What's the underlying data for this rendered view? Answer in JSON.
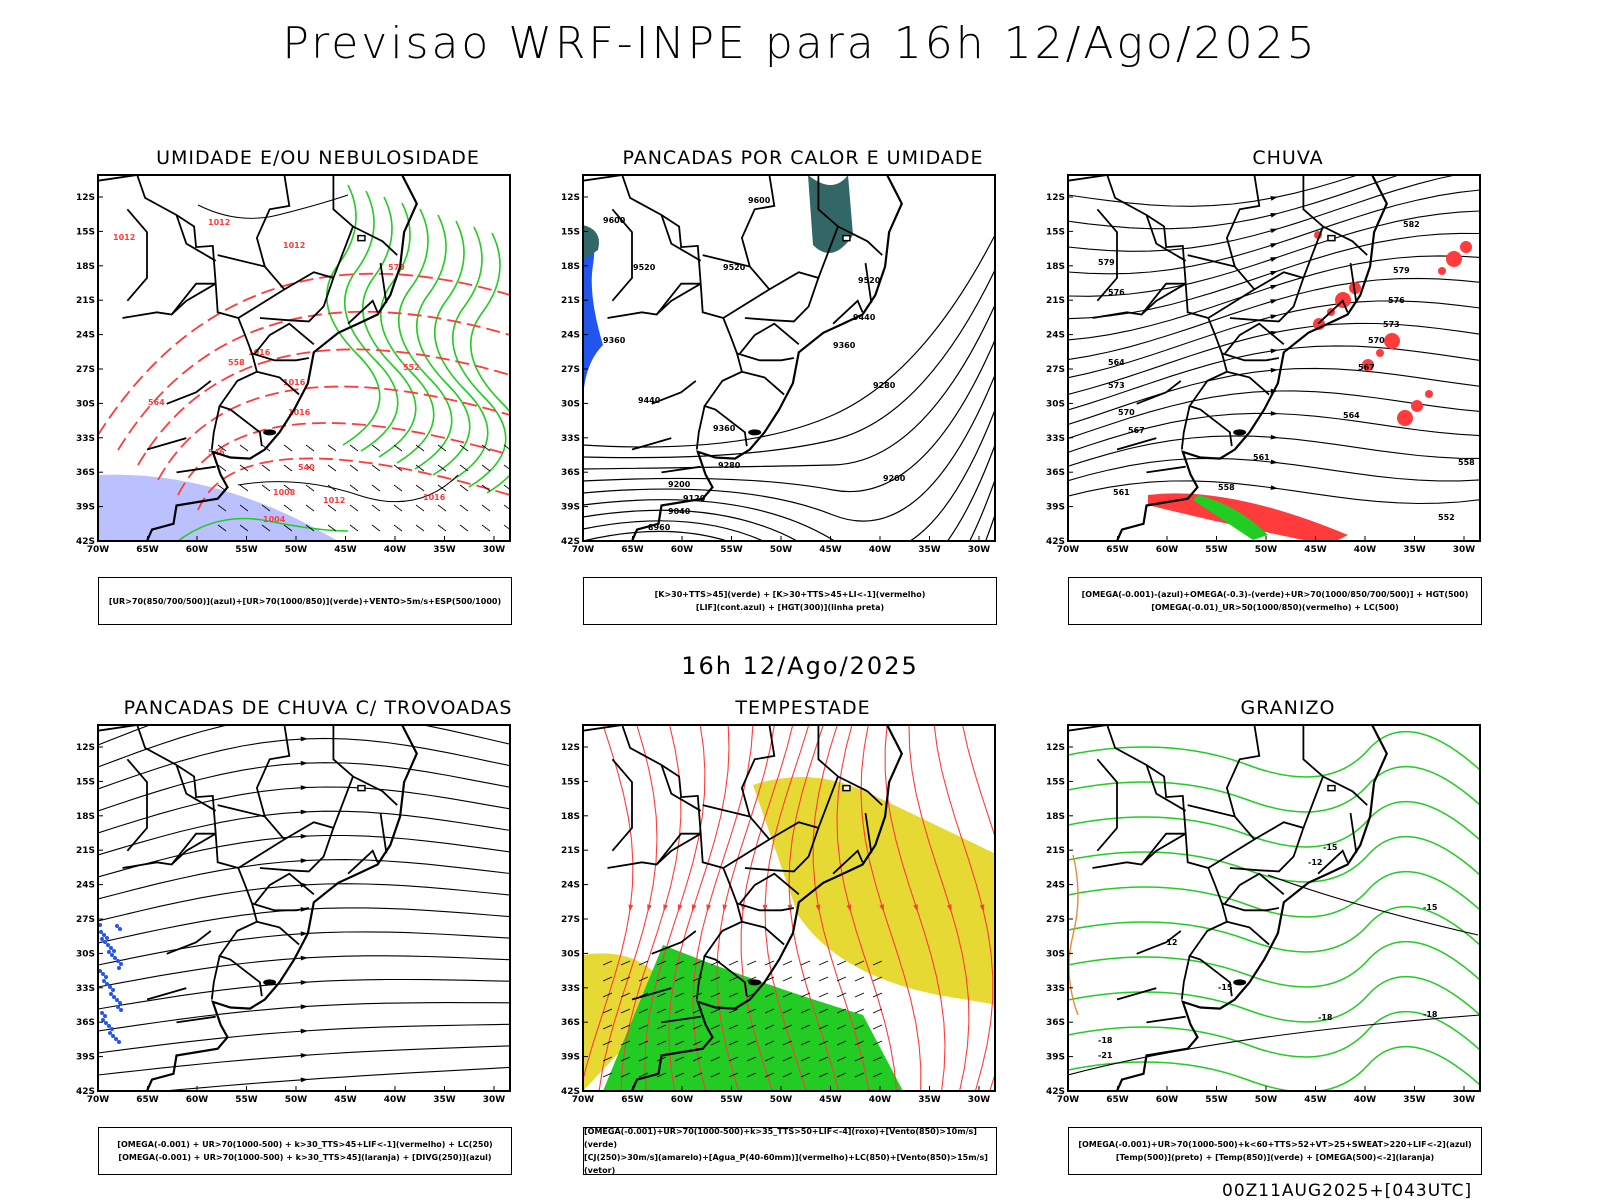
{
  "title": "Previsao WRF-INPE  para 16h 12/Ago/2025",
  "mid_date": "16h 12/Ago/2025",
  "footer_stamp": "00Z11AUG2025+[043UTC]",
  "axes": {
    "lat_labels": [
      "12S",
      "15S",
      "18S",
      "21S",
      "24S",
      "27S",
      "30S",
      "33S",
      "36S",
      "39S",
      "42S"
    ],
    "lon_labels": [
      "70W",
      "65W",
      "60W",
      "55W",
      "50W",
      "45W",
      "40W",
      "35W",
      "30W"
    ]
  },
  "colors": {
    "red": "#ff3b3b",
    "green": "#22cc22",
    "blue": "#2255ee",
    "yellow": "#e6d934",
    "lavender": "#aab0ff",
    "teal": "#336666",
    "orange": "#ee8833"
  },
  "panels": [
    {
      "id": "umidade",
      "title": "UMIDADE E/OU NEBULOSIDADE",
      "legend": [
        "[UR>70(850/700/500)](azul)+[UR>70(1000/850)](verde)+VENTO>5m/s+ESP(500/1000)"
      ],
      "contour_labels": [
        "1012",
        "1012",
        "1012",
        "1016",
        "1016",
        "1016",
        "1008",
        "1004",
        "1012",
        "1016",
        "570",
        "564",
        "558",
        "552",
        "546",
        "540"
      ]
    },
    {
      "id": "pancadas-calor",
      "title": "PANCADAS POR CALOR E UMIDADE",
      "legend": [
        "[K>30+TTS>45](verde) + [K>30+TTS>45+LI<-1](vermelho)",
        "[LIF](cont.azul) + [HGT(300)](linha preta)"
      ],
      "contour_labels": [
        "9600",
        "9600",
        "9520",
        "9520",
        "9520",
        "9440",
        "9440",
        "9360",
        "9280",
        "9360",
        "9280",
        "9200",
        "9200",
        "9120",
        "9040",
        "8960",
        "9360"
      ]
    },
    {
      "id": "chuva",
      "title": "CHUVA",
      "legend": [
        "[OMEGA(-0.001)-(azul)+OMEGA(-0.3)-(verde)+UR>70(1000/850/700/500)] + HGT(500)",
        "[OMEGA(-0.01)_UR>50(1000/850)(vermelho) + LC(500)"
      ],
      "contour_labels": [
        "582",
        "579",
        "576",
        "573",
        "570",
        "567",
        "564",
        "561",
        "558",
        "579",
        "576",
        "573",
        "570",
        "567",
        "564",
        "561",
        "558",
        "552"
      ]
    },
    {
      "id": "trovoadas",
      "title": "PANCADAS DE CHUVA C/ TROVOADAS",
      "legend": [
        "[OMEGA(-0.001) + UR>70(1000-500) + k>30_TTS>45+LIF<-1](vermelho) + LC(250)",
        "[OMEGA(-0.001) + UR>70(1000-500) + k>30_TTS>45](laranja) + [DIVG(250)](azul)"
      ],
      "contour_labels": []
    },
    {
      "id": "tempestade",
      "title": "TEMPESTADE",
      "legend": [
        "[OMEGA(-0.001)+UR>70(1000-500)+k>35_TTS>50+LIF<-4](roxo)+[Vento(850)>10m/s](verde)",
        "[CJ(250)>30m/s](amarelo)+[Agua_P(40-60mm)](vermelho)+LC(850)+[Vento(850)>15m/s](vetor)"
      ],
      "contour_labels": []
    },
    {
      "id": "granizo",
      "title": "GRANIZO",
      "legend": [
        "[OMEGA(-0.001)+UR>70(1000-500)+k<60+TTS>52+VT>25+SWEAT>220+LIF<-2](azul)",
        "[Temp(500)](preto) + [Temp(850)](verde) + [OMEGA(500)<-2](laranja)"
      ],
      "contour_labels": [
        "-12",
        "-12",
        "-15",
        "-15",
        "-18",
        "-18",
        "-18",
        "-21",
        "-15"
      ]
    }
  ]
}
